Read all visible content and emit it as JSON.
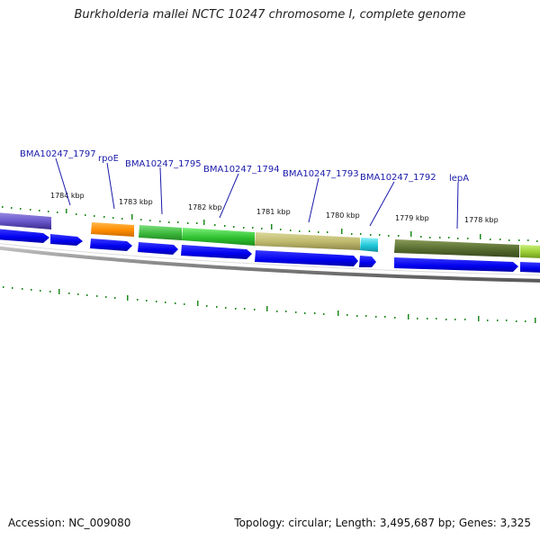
{
  "title": "Burkholderia mallei NCTC 10247 chromosome I, complete genome",
  "footer": {
    "accession": "Accession: NC_009080",
    "summary": "Topology: circular; Length: 3,495,687 bp; Genes: 3,325"
  },
  "gene_labels": [
    "BMA10247_1797",
    "rpoE",
    "BMA10247_1795",
    "BMA10247_1794",
    "BMA10247_1793",
    "BMA10247_1792",
    "lepA"
  ],
  "kbp_labels": [
    "1784 kbp",
    "1783 kbp",
    "1782 kbp",
    "1781 kbp",
    "1780 kbp",
    "1779 kbp",
    "1778 kbp"
  ],
  "colors": {
    "label": "#1a1aaa",
    "cds_arrow": "#0000ee",
    "backbone": "#888888",
    "tick": "#1f8a1f",
    "feat_purple": "#6a5acd",
    "feat_orange": "#ff8c00",
    "feat_green": "#3cb83c",
    "feat_green2": "#2fc12f",
    "feat_khaki": "#bdb76b",
    "feat_cyan": "#20c8d8",
    "feat_olive": "#556b2f",
    "feat_lime": "#9acd32"
  }
}
